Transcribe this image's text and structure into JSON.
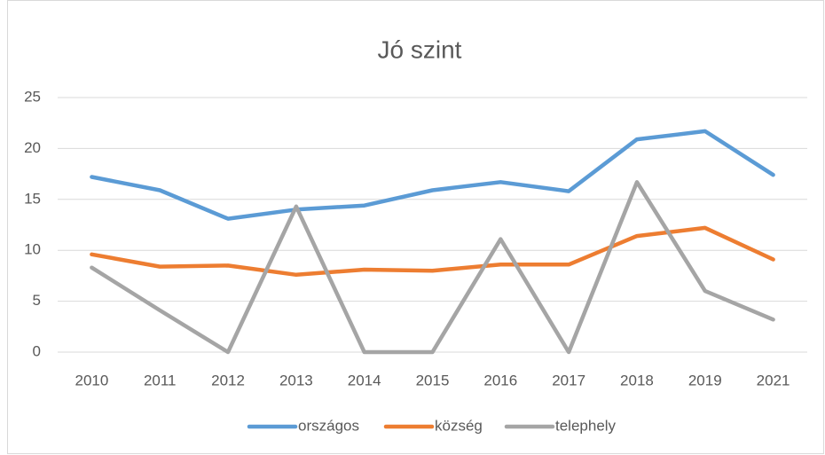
{
  "chart_data": {
    "type": "line",
    "title": "Jó szint",
    "categories": [
      "2010",
      "2011",
      "2012",
      "2013",
      "2014",
      "2015",
      "2016",
      "2017",
      "2018",
      "2019",
      "2021"
    ],
    "series": [
      {
        "name": "országos",
        "color": "#5b9bd5",
        "values": [
          17.2,
          15.9,
          13.1,
          14.0,
          14.4,
          15.9,
          16.7,
          15.8,
          20.9,
          21.7,
          17.4
        ]
      },
      {
        "name": "község",
        "color": "#ed7d31",
        "values": [
          9.6,
          8.4,
          8.5,
          7.6,
          8.1,
          8.0,
          8.6,
          8.6,
          11.4,
          12.2,
          9.1
        ]
      },
      {
        "name": "telephely",
        "color": "#a5a5a5",
        "values": [
          8.3,
          4.1,
          0,
          14.3,
          0,
          0,
          11.1,
          0,
          16.7,
          6.0,
          3.2
        ]
      }
    ],
    "ylim": [
      0,
      25
    ],
    "yticks": [
      0,
      5,
      10,
      15,
      20,
      25
    ],
    "grid": true,
    "legend": "bottom"
  }
}
